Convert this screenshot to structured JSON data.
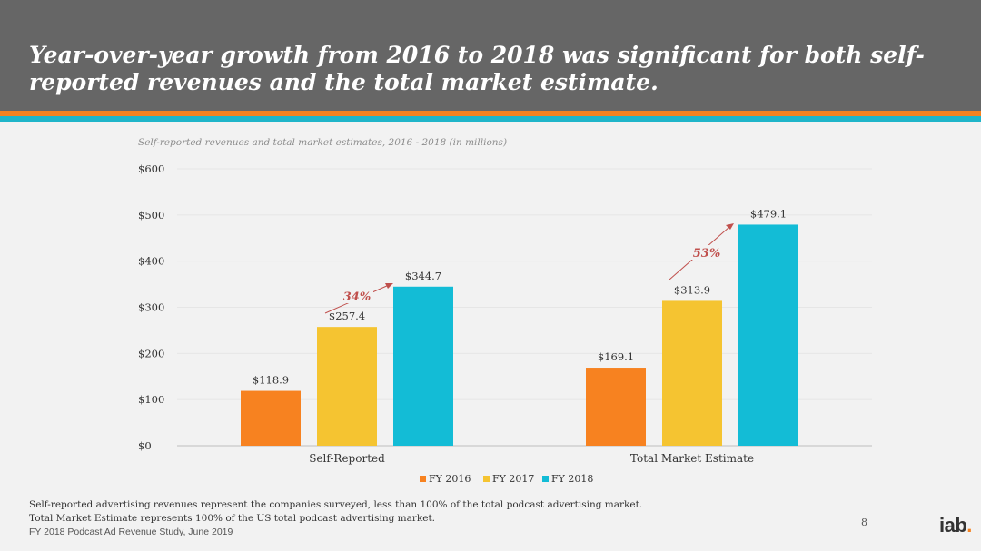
{
  "slide": {
    "title": "Year-over-year growth from 2016 to 2018 was significant for both self-reported revenues and the total market estimate.",
    "footnote_line1": "Self-reported advertising revenues represent the companies surveyed, less than 100% of the total podcast advertising market.",
    "footnote_line2": "Total Market Estimate represents 100% of the US total podcast advertising market.",
    "source": "FY 2018 Podcast Ad Revenue Study, June 2019",
    "page_number": "8",
    "logo_text": "iab",
    "logo_dot": "."
  },
  "colors": {
    "header_bg": "#666666",
    "stripe_orange": "#f58220",
    "stripe_teal": "#1fb5c9",
    "fy2016": "#f78220",
    "fy2017": "#f5c431",
    "fy2018": "#13bcd6",
    "growth_arrow": "#c0504d"
  },
  "chart_data": {
    "type": "bar",
    "title": "Self-reported revenues and total market estimates, 2016 - 2018 (in millions)",
    "categories": [
      "Self-Reported",
      "Total Market Estimate"
    ],
    "series": [
      {
        "name": "FY 2016",
        "values": [
          118.9,
          169.1
        ],
        "labels": [
          "$118.9",
          "$169.1"
        ]
      },
      {
        "name": "FY 2017",
        "values": [
          257.4,
          313.9
        ],
        "labels": [
          "$257.4",
          "$313.9"
        ]
      },
      {
        "name": "FY 2018",
        "values": [
          344.7,
          479.1
        ],
        "labels": [
          "$344.7",
          "$479.1"
        ]
      }
    ],
    "y_ticks": [
      0,
      100,
      200,
      300,
      400,
      500,
      600
    ],
    "y_tick_labels": [
      "$0",
      "$100",
      "$200",
      "$300",
      "$400",
      "$500",
      "$600"
    ],
    "ylim": [
      0,
      600
    ],
    "grid": true,
    "legend": "bottom-center",
    "annotations": [
      {
        "category": "Self-Reported",
        "text": "34%"
      },
      {
        "category": "Total Market Estimate",
        "text": "53%"
      }
    ]
  }
}
